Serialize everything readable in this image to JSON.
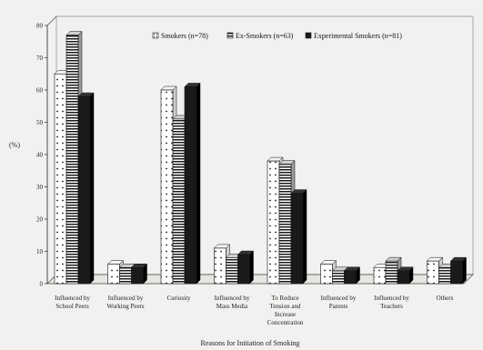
{
  "chart_data": {
    "type": "bar",
    "title": "",
    "xlabel": "Reasons for Initiation of Smoking",
    "ylabel": "(%)",
    "ylim": [
      0,
      80
    ],
    "yticks": [
      0,
      10,
      20,
      30,
      40,
      50,
      60,
      70,
      80
    ],
    "grid": false,
    "legend_position": "top-right",
    "categories": [
      [
        "Influenced by",
        "School Peers"
      ],
      [
        "Influenced by",
        "Working Peers"
      ],
      [
        "Curiosity"
      ],
      [
        "Influenced by",
        "Mass Media"
      ],
      [
        "To Reduce",
        "Tension and",
        "Increase",
        "Concentration"
      ],
      [
        "Influenced by",
        "Parents"
      ],
      [
        "Influenced by",
        "Teachers"
      ],
      [
        "Others"
      ]
    ],
    "series": [
      {
        "name": "Smokers (n=78)",
        "values": [
          65,
          6,
          60,
          11,
          38,
          6,
          5,
          7
        ],
        "pattern": "dots"
      },
      {
        "name": "Ex-Smokers (n=63)",
        "values": [
          77,
          5,
          51,
          8,
          37,
          4,
          7,
          5
        ],
        "pattern": "stripes"
      },
      {
        "name": "Experimental Smokers (n=81)",
        "values": [
          58,
          5,
          61,
          9,
          28,
          4,
          4,
          7
        ],
        "pattern": "solid"
      }
    ],
    "colors": {
      "solid": "#1a1a1a",
      "face": "#ffffff",
      "stripe": "#1a1a1a",
      "dot": "#1a1a1a"
    }
  }
}
